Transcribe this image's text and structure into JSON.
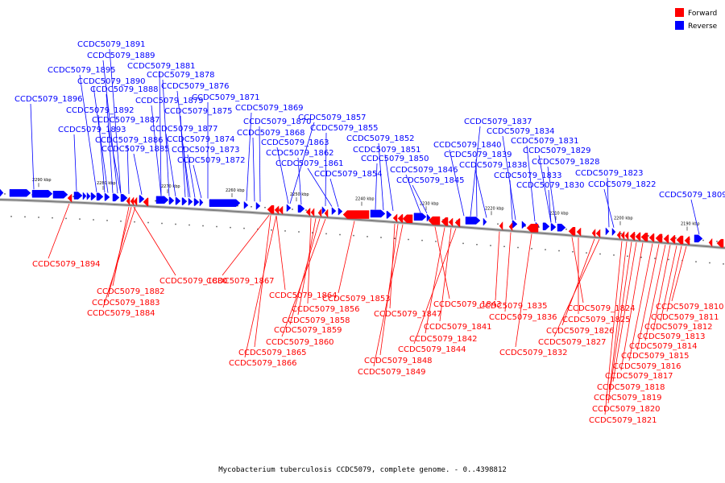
{
  "caption": "Mycobacterium tuberculosis CCDC5079, complete genome. - 0..4398812",
  "legend": [
    {
      "label": "Forward",
      "color": "#ff0000"
    },
    {
      "label": "Reverse",
      "color": "#0000ff"
    }
  ],
  "ticks": [
    "2290 kbp",
    "2280 kbp",
    "2270 kbp",
    "2260 kbp",
    "2250 kbp",
    "2240 kbp",
    "2230 kbp",
    "2220 kbp",
    "2210 kbp",
    "2200 kbp",
    "2190 kbp"
  ],
  "reverse_labels": [
    "CCDC5079_1891",
    "CCDC5079_1889",
    "CCDC5079_1881",
    "CCDC5079_1895",
    "CCDC5079_1878",
    "CCDC5079_1890",
    "CCDC5079_1876",
    "CCDC5079_1888",
    "CCDC5079_1896",
    "CCDC5079_1879",
    "CCDC5079_1871",
    "CCDC5079_1892",
    "CCDC5079_1875",
    "CCDC5079_1869",
    "CCDC5079_1887",
    "CCDC5079_1870",
    "CCDC5079_1857",
    "CCDC5079_1893",
    "CCDC5079_1877",
    "CCDC5079_1868",
    "CCDC5079_1855",
    "CCDC5079_1886",
    "CCDC5079_1874",
    "CCDC5079_1863",
    "CCDC5079_1852",
    "CCDC5079_1885",
    "CCDC5079_1873",
    "CCDC5079_1862",
    "CCDC5079_1851",
    "CCDC5079_1872",
    "CCDC5079_1861",
    "CCDC5079_1850",
    "CCDC5079_1854",
    "CCDC5079_1846",
    "CCDC5079_1845",
    "CCDC5079_1837",
    "CCDC5079_1834",
    "CCDC5079_1840",
    "CCDC5079_1831",
    "CCDC5079_1839",
    "CCDC5079_1829",
    "CCDC5079_1838",
    "CCDC5079_1828",
    "CCDC5079_1833",
    "CCDC5079_1823",
    "CCDC5079_1830",
    "CCDC5079_1822",
    "CCDC5079_1809"
  ],
  "forward_labels": [
    "CCDC5079_1894",
    "CCDC5079_1880",
    "CCDC5079_1867",
    "CCDC5079_1882",
    "CCDC5079_1883",
    "CCDC5079_1884",
    "CCDC5079_1864",
    "CCDC5079_1853",
    "CCDC5079_1856",
    "CCDC5079_1858",
    "CCDC5079_1859",
    "CCDC5079_1860",
    "CCDC5079_1865",
    "CCDC5079_1866",
    "CCDC5079_1843",
    "CCDC5079_1847",
    "CCDC5079_1841",
    "CCDC5079_1842",
    "CCDC5079_1844",
    "CCDC5079_1848",
    "CCDC5079_1849",
    "CCDC5079_1835",
    "CCDC5079_1836",
    "CCDC5079_1832",
    "CCDC5079_1824",
    "CCDC5079_1825",
    "CCDC5079_1826",
    "CCDC5079_1827",
    "CCDC5079_1810",
    "CCDC5079_1811",
    "CCDC5079_1812",
    "CCDC5079_1813",
    "CCDC5079_1814",
    "CCDC5079_1815",
    "CCDC5079_1816",
    "CCDC5079_1817",
    "CCDC5079_1818",
    "CCDC5079_1819",
    "CCDC5079_1820",
    "CCDC5079_1821"
  ]
}
